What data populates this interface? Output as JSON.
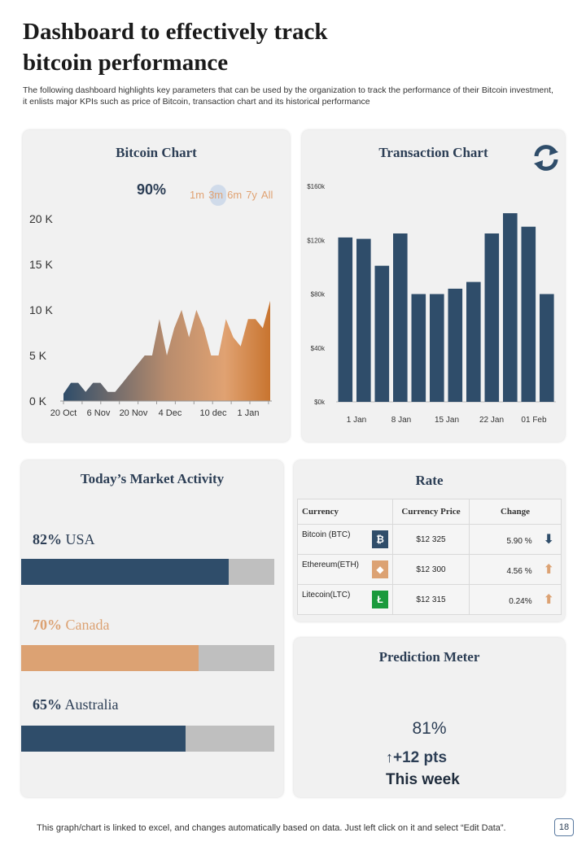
{
  "header": {
    "title_line1": "Dashboard to effectively track",
    "title_line2": "bitcoin performance",
    "subtitle": "The following dashboard highlights key parameters that can be used by the organization to track the performance of their Bitcoin investment, it enlists major KPIs such as price of Bitcoin, transaction chart and its historical performance"
  },
  "bitcoin_card": {
    "title": "Bitcoin Chart",
    "percent": "90%",
    "ranges": [
      "1m",
      "3m",
      "6m",
      "7y",
      "All"
    ],
    "selected_range": "3m"
  },
  "transaction_card": {
    "title": "Transaction Chart",
    "refresh_icon": "refresh-icon"
  },
  "market_card": {
    "title": "Today’s Market Activity",
    "rows": [
      {
        "pct": "82%",
        "country": "USA",
        "value": 82,
        "color": "#2f4d6a",
        "label_color": "#2c3e55"
      },
      {
        "pct": "70%",
        "country": "Canada",
        "value": 70,
        "color": "#dca273",
        "label_color": "#dca273"
      },
      {
        "pct": "65%",
        "country": "Australia",
        "value": 65,
        "color": "#2f4d6a",
        "label_color": "#2c3e55"
      }
    ]
  },
  "rate_card": {
    "title": "Rate",
    "headers": [
      "Currency",
      "Currency Price",
      "Change"
    ],
    "rows": [
      {
        "currency": "Bitcoin (BTC)",
        "icon": "₿",
        "icon_color": "#2f4d6a",
        "price": "$12 325",
        "change": "5.90 %",
        "direction": "down",
        "arrow_color": "#2f4d6a"
      },
      {
        "currency": "Ethereum(ETH)",
        "icon": "◆",
        "icon_color": "#dca273",
        "price": "$12 300",
        "change": "4.56 %",
        "direction": "up",
        "arrow_color": "#dca273"
      },
      {
        "currency": "Litecoin(LTC)",
        "icon": "Ł",
        "icon_color": "#1a9a3c",
        "price": "$12 315",
        "change": "0.24%",
        "direction": "up",
        "arrow_color": "#dca273"
      }
    ]
  },
  "prediction_card": {
    "title": "Prediction Meter",
    "percent": "81%",
    "points": "+12 pts",
    "period": "This week"
  },
  "footer": {
    "text": "This graph/chart is linked to excel,  and changes automatically based on data. Just left click on it and select “Edit Data”.",
    "page_number": "18"
  },
  "chart_data": [
    {
      "type": "area",
      "title": "Bitcoin Chart",
      "x_ticks": [
        "20 Oct",
        "6 Nov",
        "20 Nov",
        "4 Dec",
        "10 dec",
        "1 Jan"
      ],
      "y_ticks": [
        "0 K",
        "5 K",
        "10 K",
        "15 K",
        "20 K"
      ],
      "ylim": [
        0,
        20000
      ],
      "gradient": [
        "#2f4d6a",
        "#e0a272",
        "#c8742f"
      ],
      "values": [
        800,
        2000,
        2000,
        1000,
        2000,
        2000,
        1000,
        1000,
        2000,
        3000,
        4000,
        5000,
        5000,
        9000,
        5000,
        8000,
        10000,
        7000,
        10000,
        8000,
        5000,
        5000,
        9000,
        7000,
        6000,
        9000,
        9000,
        8000,
        11000
      ]
    },
    {
      "type": "bar",
      "title": "Transaction Chart",
      "categories": [
        "",
        "1 Jan",
        "",
        "8 Jan",
        "",
        "15 Jan",
        "",
        "22 Jan",
        "",
        "01 Feb",
        "",
        ""
      ],
      "values": [
        122000,
        121000,
        101000,
        125000,
        80000,
        80000,
        84000,
        89000,
        125000,
        140000,
        130000,
        80000
      ],
      "y_ticks": [
        "$0k",
        "$40k",
        "$80k",
        "$120k",
        "$160k"
      ],
      "ylim": [
        0,
        160000
      ],
      "color": "#2f4d6a"
    }
  ]
}
